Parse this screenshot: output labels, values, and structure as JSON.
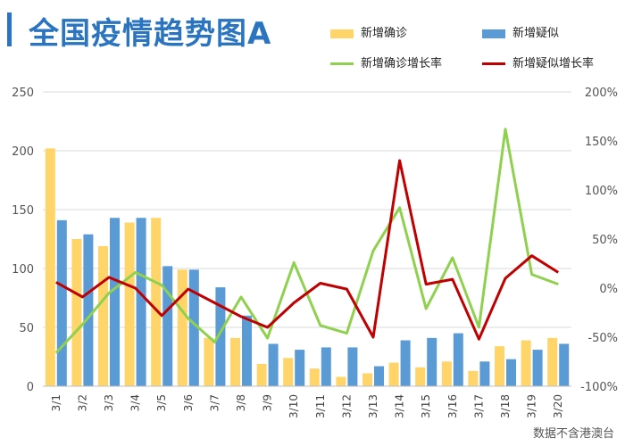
{
  "title": "全国疫情趋势图A",
  "footnote": "数据不含港澳台",
  "legend": [
    {
      "label": "新增确诊",
      "kind": "bar",
      "color": "#ffd56a"
    },
    {
      "label": "新增疑似",
      "kind": "bar",
      "color": "#5b9bd5"
    },
    {
      "label": "新增确诊增长率",
      "kind": "line",
      "color": "#8fd14f"
    },
    {
      "label": "新增疑似增长率",
      "kind": "line",
      "color": "#c00000"
    }
  ],
  "chart_data": {
    "type": "bar",
    "categories": [
      "3/1",
      "3/2",
      "3/3",
      "3/4",
      "3/5",
      "3/6",
      "3/7",
      "3/8",
      "3/9",
      "3/10",
      "3/11",
      "3/12",
      "3/13",
      "3/14",
      "3/15",
      "3/16",
      "3/17",
      "3/18",
      "3/19",
      "3/20"
    ],
    "series": [
      {
        "name": "新增确诊",
        "type": "bar",
        "axis": "left",
        "color": "#ffd56a",
        "values": [
          202,
          125,
          119,
          139,
          143,
          99,
          41,
          41,
          19,
          24,
          15,
          8,
          11,
          20,
          16,
          21,
          13,
          34,
          39,
          41
        ]
      },
      {
        "name": "新增疑似",
        "type": "bar",
        "axis": "left",
        "color": "#5b9bd5",
        "values": [
          141,
          129,
          143,
          143,
          102,
          99,
          84,
          60,
          36,
          31,
          33,
          33,
          17,
          39,
          41,
          45,
          21,
          23,
          31,
          36
        ]
      },
      {
        "name": "新增确诊增长率",
        "type": "line",
        "axis": "right",
        "color": "#8fd14f",
        "values": [
          -66,
          -37,
          -5,
          16,
          3,
          -31,
          -55,
          -9,
          -51,
          26,
          -38,
          -46,
          38,
          82,
          -21,
          31,
          -40,
          162,
          14,
          4
        ]
      },
      {
        "name": "新增疑似增长率",
        "type": "line",
        "axis": "right",
        "color": "#c00000",
        "values": [
          6,
          -9,
          11,
          0,
          -28,
          -1,
          -15,
          -29,
          -40,
          -15,
          5,
          -1,
          -50,
          130,
          4,
          9,
          -52,
          10,
          33,
          16
        ]
      }
    ],
    "left_axis": {
      "ticks": [
        "0",
        "50",
        "100",
        "150",
        "200",
        "250"
      ],
      "ylim": [
        0,
        250
      ]
    },
    "right_axis": {
      "ticks": [
        "-100%",
        "-50%",
        "0%",
        "50%",
        "100%",
        "150%",
        "200%"
      ],
      "ylim": [
        -100,
        200
      ]
    },
    "grid": true,
    "legend_position": "top-right"
  }
}
